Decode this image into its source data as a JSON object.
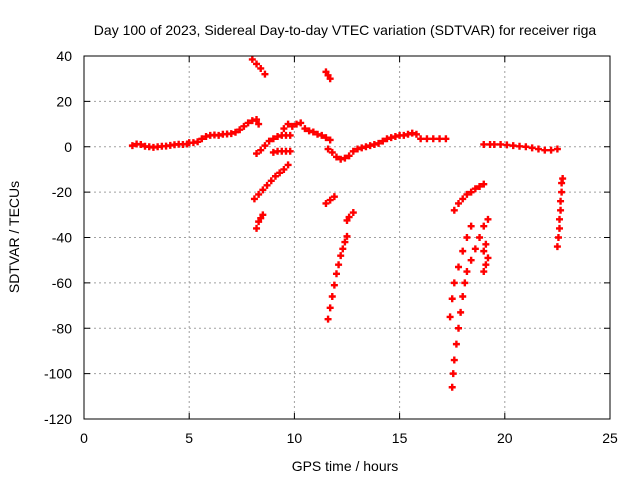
{
  "chart_data": {
    "type": "scatter",
    "title": "Day 100 of 2023, Sidereal Day-to-day VTEC variation (SDTVAR) for receiver riga",
    "xlabel": "GPS time / hours",
    "ylabel": "SDTVAR / TECUs",
    "xlim": [
      0,
      25
    ],
    "ylim": [
      -120,
      40
    ],
    "xticks": [
      0,
      5,
      10,
      15,
      20,
      25
    ],
    "yticks": [
      -120,
      -100,
      -80,
      -60,
      -40,
      -20,
      0,
      20,
      40
    ],
    "grid": true,
    "marker": "plus",
    "color": "#ff0000",
    "series": [
      {
        "points": [
          [
            2.3,
            0.5
          ],
          [
            2.5,
            1.2
          ],
          [
            2.7,
            1.0
          ],
          [
            2.9,
            0.2
          ],
          [
            3.1,
            0.0
          ],
          [
            3.3,
            -0.3
          ],
          [
            3.5,
            0.0
          ],
          [
            3.7,
            0.2
          ],
          [
            3.9,
            0.3
          ],
          [
            4.1,
            0.6
          ],
          [
            4.3,
            0.9
          ],
          [
            4.5,
            1.1
          ],
          [
            4.7,
            1.0
          ],
          [
            4.9,
            1.2
          ],
          [
            5.0,
            1.8
          ],
          [
            5.2,
            1.8
          ],
          [
            5.4,
            2.2
          ],
          [
            5.6,
            3.5
          ],
          [
            5.8,
            4.5
          ],
          [
            6.0,
            5.0
          ],
          [
            6.2,
            5.2
          ],
          [
            6.4,
            5.0
          ],
          [
            6.6,
            5.5
          ],
          [
            6.8,
            5.6
          ],
          [
            7.0,
            5.8
          ],
          [
            7.2,
            6.4
          ],
          [
            7.4,
            7.5
          ],
          [
            7.6,
            9.0
          ],
          [
            7.8,
            10.5
          ],
          [
            8.0,
            11.5
          ],
          [
            8.2,
            12.0
          ],
          [
            8.3,
            10.0
          ],
          [
            8.2,
            -3.0
          ],
          [
            8.4,
            -1.5
          ],
          [
            8.6,
            0.5
          ],
          [
            8.8,
            2.5
          ],
          [
            9.0,
            3.5
          ],
          [
            9.2,
            4.5
          ],
          [
            9.4,
            5.0
          ],
          [
            9.6,
            5.0
          ],
          [
            9.8,
            5.0
          ],
          [
            9.0,
            -2.5
          ],
          [
            9.2,
            -2.0
          ],
          [
            9.4,
            -2.0
          ],
          [
            9.6,
            -2.0
          ],
          [
            9.8,
            -2.0
          ],
          [
            9.5,
            8.0
          ],
          [
            9.7,
            10.0
          ],
          [
            9.9,
            9.0
          ],
          [
            10.1,
            10.0
          ],
          [
            10.3,
            10.5
          ],
          [
            10.5,
            8.0
          ],
          [
            10.7,
            7.0
          ],
          [
            10.9,
            6.5
          ],
          [
            11.1,
            5.5
          ],
          [
            11.3,
            5.0
          ],
          [
            11.5,
            4.0
          ],
          [
            11.7,
            3.0
          ],
          [
            11.6,
            -1.0
          ],
          [
            11.8,
            -2.5
          ],
          [
            12.0,
            -4.5
          ],
          [
            12.2,
            -5.5
          ],
          [
            12.4,
            -5.0
          ],
          [
            12.6,
            -4.0
          ],
          [
            12.8,
            -2.0
          ],
          [
            13.0,
            -1.0
          ],
          [
            13.2,
            -0.5
          ],
          [
            13.4,
            0.0
          ],
          [
            13.6,
            0.5
          ],
          [
            13.8,
            1.0
          ],
          [
            14.0,
            1.5
          ],
          [
            14.2,
            2.5
          ],
          [
            14.4,
            3.5
          ],
          [
            14.6,
            4.0
          ],
          [
            14.8,
            4.5
          ],
          [
            15.0,
            5.0
          ],
          [
            15.2,
            5.0
          ],
          [
            15.4,
            5.5
          ],
          [
            15.6,
            6.0
          ],
          [
            15.8,
            5.5
          ],
          [
            16.0,
            3.5
          ],
          [
            16.3,
            3.5
          ],
          [
            16.6,
            3.5
          ],
          [
            16.9,
            3.5
          ],
          [
            17.2,
            3.5
          ],
          [
            19.0,
            1.0
          ],
          [
            19.3,
            1.0
          ],
          [
            19.5,
            1.0
          ],
          [
            19.8,
            1.0
          ],
          [
            20.1,
            0.8
          ],
          [
            20.4,
            0.5
          ],
          [
            20.7,
            0.2
          ],
          [
            21.0,
            0.0
          ],
          [
            21.3,
            -0.5
          ],
          [
            21.6,
            -1.0
          ],
          [
            21.9,
            -1.5
          ],
          [
            22.2,
            -1.5
          ],
          [
            22.5,
            -1.0
          ],
          [
            8.0,
            38.5
          ],
          [
            8.2,
            36.5
          ],
          [
            8.4,
            34.5
          ],
          [
            8.6,
            32.0
          ],
          [
            11.5,
            33.0
          ],
          [
            11.6,
            31.5
          ],
          [
            11.7,
            30.0
          ],
          [
            8.1,
            -23.0
          ],
          [
            8.3,
            -21.0
          ],
          [
            8.5,
            -19.0
          ],
          [
            8.7,
            -17.0
          ],
          [
            8.9,
            -15.0
          ],
          [
            9.1,
            -13.0
          ],
          [
            9.3,
            -11.5
          ],
          [
            9.5,
            -10.0
          ],
          [
            9.7,
            -8.0
          ],
          [
            8.2,
            -36.0
          ],
          [
            8.3,
            -33.0
          ],
          [
            8.4,
            -31.5
          ],
          [
            8.5,
            -30.0
          ],
          [
            11.5,
            -25.0
          ],
          [
            11.7,
            -23.5
          ],
          [
            11.9,
            -22.0
          ],
          [
            12.5,
            -32.5
          ],
          [
            12.6,
            -31.0
          ],
          [
            12.8,
            -29.0
          ],
          [
            11.6,
            -76.0
          ],
          [
            11.7,
            -71.0
          ],
          [
            11.8,
            -66.0
          ],
          [
            11.9,
            -61.0
          ],
          [
            12.0,
            -56.0
          ],
          [
            12.1,
            -52.0
          ],
          [
            12.2,
            -48.0
          ],
          [
            12.3,
            -45.0
          ],
          [
            12.4,
            -42.0
          ],
          [
            12.5,
            -39.5
          ],
          [
            17.6,
            -28.0
          ],
          [
            17.8,
            -25.0
          ],
          [
            18.0,
            -23.0
          ],
          [
            18.2,
            -21.0
          ],
          [
            18.4,
            -20.0
          ],
          [
            18.6,
            -18.5
          ],
          [
            18.8,
            -17.5
          ],
          [
            19.0,
            -16.5
          ],
          [
            17.4,
            -75.0
          ],
          [
            17.5,
            -67.0
          ],
          [
            17.6,
            -60.0
          ],
          [
            17.8,
            -53.0
          ],
          [
            18.0,
            -46.0
          ],
          [
            18.2,
            -40.0
          ],
          [
            18.4,
            -35.0
          ],
          [
            17.5,
            -106.0
          ],
          [
            17.55,
            -100.0
          ],
          [
            17.6,
            -94.0
          ],
          [
            17.7,
            -87.0
          ],
          [
            17.8,
            -80.0
          ],
          [
            17.9,
            -73.0
          ],
          [
            18.0,
            -66.0
          ],
          [
            18.1,
            -60.0
          ],
          [
            18.2,
            -55.0
          ],
          [
            18.4,
            -50.0
          ],
          [
            18.6,
            -45.0
          ],
          [
            18.8,
            -40.0
          ],
          [
            19.0,
            -35.0
          ],
          [
            19.2,
            -32.0
          ],
          [
            19.0,
            -55.0
          ],
          [
            19.1,
            -52.0
          ],
          [
            19.2,
            -49.0
          ],
          [
            19.0,
            -46.0
          ],
          [
            19.1,
            -43.0
          ],
          [
            22.5,
            -44.0
          ],
          [
            22.55,
            -40.0
          ],
          [
            22.6,
            -36.0
          ],
          [
            22.6,
            -32.0
          ],
          [
            22.65,
            -28.0
          ],
          [
            22.65,
            -24.0
          ],
          [
            22.7,
            -20.0
          ],
          [
            22.7,
            -16.0
          ],
          [
            22.75,
            -14.0
          ]
        ]
      }
    ]
  }
}
